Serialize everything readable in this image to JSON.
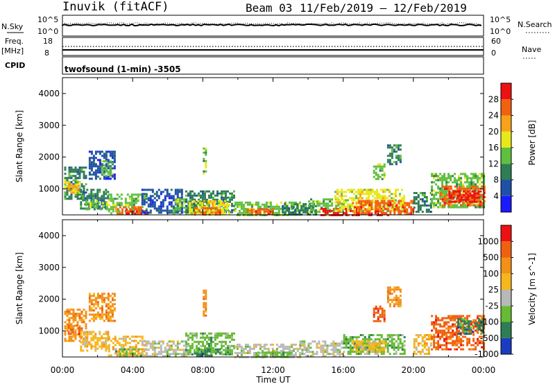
{
  "header": {
    "station": "Inuvik (fitACF)",
    "beam": "Beam 03",
    "date_range": "11/Feb/2019 – 12/Feb/2019"
  },
  "strips": {
    "nsky_label": "N.Sky",
    "nsky_top": "10^5",
    "nsky_bottom": "10^0",
    "nsearch_label": "N.Search",
    "nsearch_top": "10^5",
    "nsearch_bottom": "10^0",
    "freq_label": "Freq.",
    "freq_unit": "[MHz]",
    "freq_top": "18",
    "freq_bottom": "8",
    "nave_label": "Nave",
    "nave_top": "60",
    "nave_bottom": "0",
    "cpid_label": "CPID",
    "cpid_value": "twofsound (1-min) -3505"
  },
  "chart_data": [
    {
      "type": "heatmap",
      "name": "power",
      "ylabel": "Slant Range [km]",
      "xlabel": "Time UT",
      "xticks": [
        "00:00",
        "04:00",
        "08:00",
        "12:00",
        "16:00",
        "20:00",
        "00:00"
      ],
      "yticks": [
        "1000",
        "2000",
        "3000",
        "4000"
      ],
      "ylim": [
        180,
        4500
      ],
      "xlim_hours": [
        0,
        24
      ],
      "colorbar_label": "Power [dB]",
      "colorbar_ticks": [
        "4",
        "8",
        "12",
        "16",
        "20",
        "24",
        "28"
      ],
      "colors": [
        "#1a1aff",
        "#1f4fa8",
        "#2e7d55",
        "#5fbf3f",
        "#e8e81a",
        "#f7a21b",
        "#f0620f",
        "#ee1111"
      ],
      "regions": [
        {
          "t0": 0.1,
          "t1": 1.3,
          "r0": 700,
          "r1": 1700,
          "level": 2
        },
        {
          "t0": 0.1,
          "t1": 1.0,
          "r0": 900,
          "r1": 1300,
          "level": 4
        },
        {
          "t0": 0.3,
          "t1": 0.9,
          "r0": 1000,
          "r1": 1200,
          "level": 5
        },
        {
          "t0": 1.0,
          "t1": 2.6,
          "r0": 400,
          "r1": 1000,
          "level": 2
        },
        {
          "t0": 1.3,
          "t1": 2.6,
          "r0": 350,
          "r1": 650,
          "level": 3
        },
        {
          "t0": 1.5,
          "t1": 3.0,
          "r0": 1300,
          "r1": 2200,
          "level": 1
        },
        {
          "t0": 2.2,
          "t1": 2.8,
          "r0": 1400,
          "r1": 1900,
          "level": 3
        },
        {
          "t0": 2.6,
          "t1": 4.8,
          "r0": 250,
          "r1": 850,
          "level": 3
        },
        {
          "t0": 3.0,
          "t1": 4.5,
          "r0": 250,
          "r1": 450,
          "level": 6
        },
        {
          "t0": 3.6,
          "t1": 4.8,
          "r0": 200,
          "r1": 320,
          "level": 7
        },
        {
          "t0": 4.5,
          "t1": 6.8,
          "r0": 250,
          "r1": 1000,
          "level": 1
        },
        {
          "t0": 6.3,
          "t1": 7.5,
          "r0": 200,
          "r1": 700,
          "level": 3
        },
        {
          "t0": 7.0,
          "t1": 9.8,
          "r0": 250,
          "r1": 950,
          "level": 2
        },
        {
          "t0": 7.2,
          "t1": 9.5,
          "r0": 250,
          "r1": 650,
          "level": 4
        },
        {
          "t0": 7.5,
          "t1": 9.0,
          "r0": 200,
          "r1": 420,
          "level": 6
        },
        {
          "t0": 8.0,
          "t1": 8.2,
          "r0": 1500,
          "r1": 2300,
          "level": 3
        },
        {
          "t0": 9.8,
          "t1": 13.5,
          "r0": 200,
          "r1": 600,
          "level": 3
        },
        {
          "t0": 10.5,
          "t1": 12.0,
          "r0": 200,
          "r1": 380,
          "level": 6
        },
        {
          "t0": 12.5,
          "t1": 14.5,
          "r0": 200,
          "r1": 550,
          "level": 2
        },
        {
          "t0": 14.0,
          "t1": 16.0,
          "r0": 250,
          "r1": 700,
          "level": 3
        },
        {
          "t0": 14.7,
          "t1": 18.5,
          "r0": 200,
          "r1": 400,
          "level": 7
        },
        {
          "t0": 15.5,
          "t1": 19.5,
          "r0": 300,
          "r1": 1000,
          "level": 4
        },
        {
          "t0": 16.5,
          "t1": 20.0,
          "r0": 250,
          "r1": 650,
          "level": 6
        },
        {
          "t0": 17.7,
          "t1": 18.4,
          "r0": 1300,
          "r1": 1800,
          "level": 3
        },
        {
          "t0": 18.5,
          "t1": 19.3,
          "r0": 1800,
          "r1": 2400,
          "level": 2
        },
        {
          "t0": 20.0,
          "t1": 21.0,
          "r0": 250,
          "r1": 900,
          "level": 2
        },
        {
          "t0": 21.0,
          "t1": 24.0,
          "r0": 400,
          "r1": 1500,
          "level": 3
        },
        {
          "t0": 21.5,
          "t1": 24.0,
          "r0": 500,
          "r1": 1100,
          "level": 6
        },
        {
          "t0": 22.0,
          "t1": 23.8,
          "r0": 600,
          "r1": 950,
          "level": 7
        }
      ]
    },
    {
      "type": "heatmap",
      "name": "velocity",
      "ylabel": "Slant Range [km]",
      "xlabel": "Time UT",
      "xticks": [
        "00:00",
        "04:00",
        "08:00",
        "12:00",
        "16:00",
        "20:00",
        "00:00"
      ],
      "yticks": [
        "1000",
        "2000",
        "3000",
        "4000"
      ],
      "ylim": [
        180,
        4500
      ],
      "xlim_hours": [
        0,
        24
      ],
      "colorbar_label": "Velocity [m s^-1]",
      "colorbar_ticks": [
        "1000",
        "500",
        "100",
        "25",
        "-25",
        "-100",
        "-500",
        "-1000"
      ],
      "colors": [
        "#1a3cc2",
        "#2e7d55",
        "#66bb33",
        "#b8b8b8",
        "#f5b71b",
        "#f39016",
        "#ef6010",
        "#ee1111"
      ],
      "regions": [
        {
          "t0": 0.1,
          "t1": 1.3,
          "r0": 700,
          "r1": 1700,
          "level": 5
        },
        {
          "t0": 0.3,
          "t1": 0.9,
          "r0": 900,
          "r1": 1200,
          "level": 6
        },
        {
          "t0": 1.0,
          "t1": 2.6,
          "r0": 400,
          "r1": 1000,
          "level": 4
        },
        {
          "t0": 1.5,
          "t1": 3.0,
          "r0": 1300,
          "r1": 2200,
          "level": 5
        },
        {
          "t0": 2.6,
          "t1": 4.8,
          "r0": 250,
          "r1": 850,
          "level": 4
        },
        {
          "t0": 3.0,
          "t1": 4.5,
          "r0": 250,
          "r1": 450,
          "level": 2
        },
        {
          "t0": 4.5,
          "t1": 7.0,
          "r0": 200,
          "r1": 700,
          "level": 3
        },
        {
          "t0": 7.0,
          "t1": 9.8,
          "r0": 250,
          "r1": 950,
          "level": 2
        },
        {
          "t0": 7.5,
          "t1": 9.0,
          "r0": 200,
          "r1": 450,
          "level": 1
        },
        {
          "t0": 8.0,
          "t1": 8.2,
          "r0": 1500,
          "r1": 2300,
          "level": 5
        },
        {
          "t0": 9.8,
          "t1": 13.5,
          "r0": 200,
          "r1": 600,
          "level": 3
        },
        {
          "t0": 11.0,
          "t1": 13.0,
          "r0": 200,
          "r1": 350,
          "level": 2
        },
        {
          "t0": 13.5,
          "t1": 16.0,
          "r0": 200,
          "r1": 700,
          "level": 3
        },
        {
          "t0": 16.0,
          "t1": 19.5,
          "r0": 250,
          "r1": 900,
          "level": 2
        },
        {
          "t0": 16.5,
          "t1": 18.5,
          "r0": 350,
          "r1": 700,
          "level": 4
        },
        {
          "t0": 17.7,
          "t1": 18.4,
          "r0": 1300,
          "r1": 1800,
          "level": 6
        },
        {
          "t0": 18.5,
          "t1": 19.3,
          "r0": 1800,
          "r1": 2400,
          "level": 5
        },
        {
          "t0": 20.0,
          "t1": 21.0,
          "r0": 250,
          "r1": 900,
          "level": 4
        },
        {
          "t0": 21.0,
          "t1": 24.0,
          "r0": 400,
          "r1": 1500,
          "level": 6
        },
        {
          "t0": 22.5,
          "t1": 24.0,
          "r0": 900,
          "r1": 1400,
          "level": 1
        }
      ]
    }
  ]
}
